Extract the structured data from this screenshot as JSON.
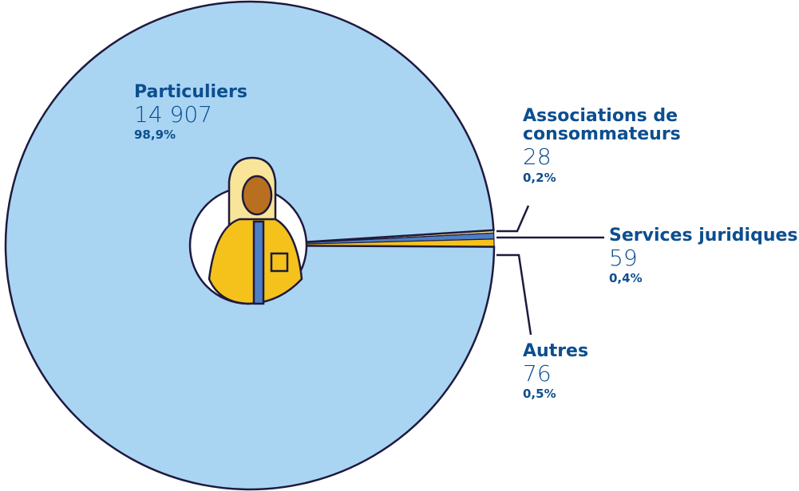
{
  "chart_data": {
    "type": "pie",
    "categories": [
      "Particuliers",
      "Associations de consommateurs",
      "Services juridiques",
      "Autres"
    ],
    "values": [
      14907,
      28,
      59,
      76
    ],
    "value_labels": [
      "14 907",
      "28",
      "59",
      "76"
    ],
    "percents": [
      98.9,
      0.2,
      0.4,
      0.5
    ],
    "percent_labels": [
      "98,9%",
      "0,2%",
      "0,4%",
      "0,5%"
    ],
    "colors": [
      "#a9d5f3",
      "#f6df8c",
      "#4d7fc6",
      "#f5c21b"
    ]
  }
}
